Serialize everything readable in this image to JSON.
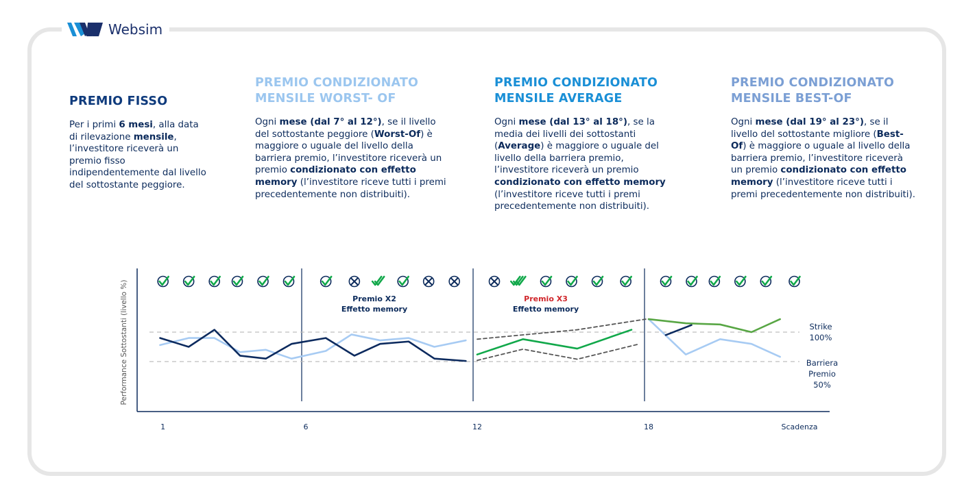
{
  "brand": {
    "name": "Websim"
  },
  "columns": [
    {
      "title": "PREMIO FISSO",
      "segments": [
        {
          "t": "Per i primi ",
          "b": false
        },
        {
          "t": "6 mesi",
          "b": true
        },
        {
          "t": ", alla data di rilevazione ",
          "b": false
        },
        {
          "t": "mensile",
          "b": true
        },
        {
          "t": ", l’investitore riceverà un premio fisso indipendentemente dal livello del sottostante peggiore.",
          "b": false
        }
      ]
    },
    {
      "title": "PREMIO CONDIZIONATO MENSILE WORST- OF",
      "segments": [
        {
          "t": "Ogni ",
          "b": false
        },
        {
          "t": "mese (dal 7° al 12°)",
          "b": true
        },
        {
          "t": ", se il livello del sottostante peggiore (",
          "b": false
        },
        {
          "t": "Worst-Of",
          "b": true
        },
        {
          "t": ") è maggiore o uguale del livello della barriera premio, l’investitore riceverà un premio ",
          "b": false
        },
        {
          "t": "condizionato con effetto memory",
          "b": true
        },
        {
          "t": " (l’investitore riceve tutti i premi precedentemente non distribuiti).",
          "b": false
        }
      ]
    },
    {
      "title": "PREMIO CONDIZIONATO MENSILE AVERAGE",
      "segments": [
        {
          "t": "Ogni ",
          "b": false
        },
        {
          "t": "mese (dal 13° al 18°)",
          "b": true
        },
        {
          "t": ", se la media dei livelli dei sottostanti (",
          "b": false
        },
        {
          "t": "Average",
          "b": true
        },
        {
          "t": ") è maggiore o uguale del livello della barriera premio, l’investitore riceverà un premio ",
          "b": false
        },
        {
          "t": "condizionato con effetto memory",
          "b": true
        },
        {
          "t": " (l’investitore riceve tutti i premi precedentemente non distribuiti).",
          "b": false
        }
      ]
    },
    {
      "title": "PREMIO CONDIZIONATO MENSILE BEST-OF",
      "segments": [
        {
          "t": "Ogni ",
          "b": false
        },
        {
          "t": "mese (dal 19° al 23°)",
          "b": true
        },
        {
          "t": ", se il livello del sottostante migliore (",
          "b": false
        },
        {
          "t": "Best-Of",
          "b": true
        },
        {
          "t": ") è maggiore o uguale al livello della barriera premio, l’investitore riceverà un premio ",
          "b": false
        },
        {
          "t": "condizionato con effetto memory",
          "b": true
        },
        {
          "t": " (l’investitore riceve tutti i premi precedentemente non distribuiti).",
          "b": false
        }
      ]
    }
  ],
  "chart": {
    "ylabel": "Performance Sottostanti (livello %)",
    "x_ticks": [
      {
        "x": 1,
        "label": "1"
      },
      {
        "x": 6,
        "label": "6"
      },
      {
        "x": 12,
        "label": "12"
      },
      {
        "x": 18,
        "label": "18"
      },
      {
        "x": 24,
        "label": "Scadenza"
      }
    ],
    "dividers": [
      6,
      12,
      18
    ],
    "strike": {
      "level": 100,
      "label_lines": [
        "Strike",
        "100%"
      ]
    },
    "barrier": {
      "level": 50,
      "label_lines": [
        "Barriera",
        "Premio",
        "50%"
      ]
    },
    "annotations": [
      {
        "x": 8.4,
        "line1": "Premio X2",
        "line2": "Effetto memory",
        "line1_color": "#0b2a5b"
      },
      {
        "x": 14.4,
        "line1": "Premio X3",
        "line2": "Effetto memory",
        "line1_color": "#d0262b"
      }
    ],
    "markers": [
      {
        "x": 1,
        "s": "check"
      },
      {
        "x": 1.9,
        "s": "check"
      },
      {
        "x": 2.8,
        "s": "check"
      },
      {
        "x": 3.6,
        "s": "check"
      },
      {
        "x": 4.5,
        "s": "check"
      },
      {
        "x": 5.4,
        "s": "check"
      },
      {
        "x": 6.7,
        "s": "check"
      },
      {
        "x": 7.7,
        "s": "cross"
      },
      {
        "x": 8.5,
        "s": "double"
      },
      {
        "x": 9.4,
        "s": "check"
      },
      {
        "x": 10.3,
        "s": "cross"
      },
      {
        "x": 11.2,
        "s": "cross"
      },
      {
        "x": 12.6,
        "s": "cross"
      },
      {
        "x": 13.4,
        "s": "triple"
      },
      {
        "x": 14.4,
        "s": "check"
      },
      {
        "x": 15.3,
        "s": "check"
      },
      {
        "x": 16.2,
        "s": "check"
      },
      {
        "x": 17.2,
        "s": "check"
      },
      {
        "x": 18.6,
        "s": "check"
      },
      {
        "x": 19.5,
        "s": "check"
      },
      {
        "x": 20.3,
        "s": "check"
      },
      {
        "x": 21.2,
        "s": "check"
      },
      {
        "x": 22.1,
        "s": "check"
      },
      {
        "x": 23.1,
        "s": "check"
      }
    ],
    "series": {
      "dark": {
        "color": "#0c2a5e",
        "points": [
          [
            0.9,
            90
          ],
          [
            1.9,
            75
          ],
          [
            2.8,
            104
          ],
          [
            3.7,
            60
          ],
          [
            4.6,
            55
          ],
          [
            5.5,
            80
          ],
          [
            6.7,
            90
          ],
          [
            7.7,
            60
          ],
          [
            8.6,
            80
          ],
          [
            9.6,
            84
          ],
          [
            10.5,
            55
          ],
          [
            11.6,
            51
          ],
          [
            18.6,
            95
          ],
          [
            19.5,
            112
          ]
        ]
      },
      "light": {
        "color": "#a7cbf3",
        "points": [
          [
            0.9,
            78
          ],
          [
            1.9,
            90
          ],
          [
            2.8,
            90
          ],
          [
            3.7,
            66
          ],
          [
            4.6,
            70
          ],
          [
            5.5,
            55
          ],
          [
            6.7,
            68
          ],
          [
            7.6,
            96
          ],
          [
            8.6,
            86
          ],
          [
            9.6,
            90
          ],
          [
            10.5,
            75
          ],
          [
            11.6,
            86
          ],
          [
            18.0,
            122
          ],
          [
            19.3,
            62
          ],
          [
            20.5,
            88
          ],
          [
            21.6,
            80
          ],
          [
            22.6,
            58
          ]
        ]
      },
      "green": {
        "color": "#11a84a",
        "points": [
          [
            12.0,
            62
          ],
          [
            13.6,
            88
          ],
          [
            15.5,
            72
          ],
          [
            17.4,
            104
          ]
        ]
      },
      "olive": {
        "color": "#58a644",
        "points": [
          [
            18.0,
            122
          ],
          [
            19.3,
            115
          ],
          [
            20.5,
            113
          ],
          [
            21.6,
            100
          ],
          [
            22.6,
            122
          ]
        ]
      },
      "upper": {
        "color": "#555",
        "points": [
          [
            12.0,
            88
          ],
          [
            15.5,
            104
          ],
          [
            17.9,
            122
          ]
        ]
      },
      "lower": {
        "color": "#555",
        "points": [
          [
            12.0,
            52
          ],
          [
            13.6,
            71
          ],
          [
            15.5,
            54
          ],
          [
            17.6,
            79
          ]
        ]
      }
    }
  }
}
